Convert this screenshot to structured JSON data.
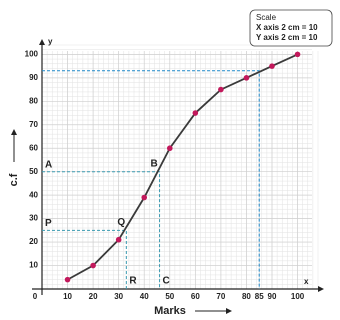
{
  "chart_data": {
    "type": "line",
    "x_label": "Marks",
    "y_label": "c.f",
    "x_axis_name": "x",
    "y_axis_name": "y",
    "x": [
      10,
      20,
      30,
      40,
      50,
      60,
      70,
      80,
      90,
      100
    ],
    "values": [
      4,
      10,
      21,
      39,
      60,
      75,
      85,
      90,
      95,
      100
    ],
    "line_color": "#3a3a3a",
    "marker_color": "#c2185b",
    "xlim": [
      0,
      108
    ],
    "ylim": [
      0,
      104
    ],
    "xticks": [
      0,
      10,
      20,
      30,
      40,
      50,
      60,
      70,
      80,
      85,
      90,
      100
    ],
    "yticks": [
      10,
      20,
      30,
      40,
      50,
      60,
      70,
      80,
      90,
      100
    ],
    "grid": true,
    "guides": [
      {
        "x": 46,
        "y": 50,
        "y_label": "A",
        "point_label": "B",
        "x_label": "C",
        "color": "#3a9ab0"
      },
      {
        "x": 33,
        "y": 25,
        "y_label": "P",
        "point_label": "Q",
        "x_label": "R",
        "color": "#3a9ab0"
      },
      {
        "x": 85,
        "y": 93,
        "color": "#1e88c8"
      }
    ],
    "scale_note": {
      "title": "Scale",
      "lines": [
        "X axis 2 cm = 10",
        "Y axis 2 cm = 10"
      ]
    }
  }
}
